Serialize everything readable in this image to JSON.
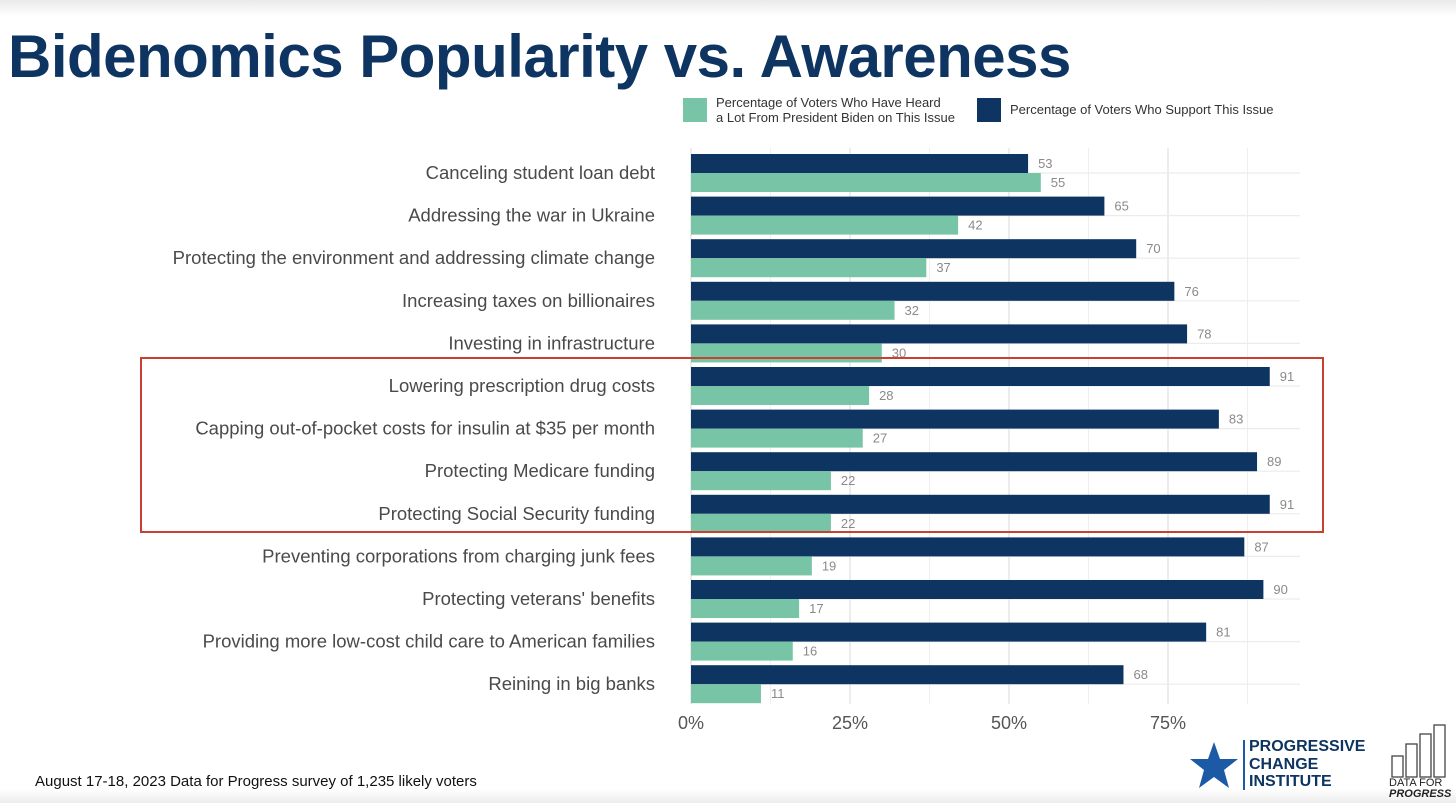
{
  "title": "Bidenomics Popularity vs. Awareness",
  "legend": [
    {
      "label": "Percentage of Voters Who Have Heard\na Lot From President Biden on This Issue",
      "color": "#78c4a6"
    },
    {
      "label": "Percentage of Voters Who Support This Issue",
      "color": "#0e3461"
    }
  ],
  "chart_data": {
    "type": "bar",
    "orientation": "horizontal",
    "title": "Bidenomics Popularity vs. Awareness",
    "categories": [
      "Canceling student loan debt",
      "Addressing the war in Ukraine",
      "Protecting the environment and addressing climate change",
      "Increasing taxes on billionaires",
      "Investing in infrastructure",
      "Lowering prescription drug costs",
      "Capping out-of-pocket costs for insulin at $35 per month",
      "Protecting Medicare funding",
      "Protecting Social Security funding",
      "Preventing corporations from charging junk fees",
      "Protecting veterans' benefits",
      "Providing more low-cost child care to American families",
      "Reining in big banks"
    ],
    "series": [
      {
        "name": "Percentage of Voters Who Support This Issue",
        "color": "#0e3461",
        "values": [
          53,
          65,
          70,
          76,
          78,
          91,
          83,
          89,
          91,
          87,
          90,
          81,
          68
        ]
      },
      {
        "name": "Percentage of Voters Who Have Heard a Lot From President Biden on This Issue",
        "color": "#78c4a6",
        "values": [
          55,
          42,
          37,
          32,
          30,
          28,
          27,
          22,
          22,
          19,
          17,
          16,
          11
        ]
      }
    ],
    "x_ticks": [
      "0%",
      "25%",
      "50%",
      "75%"
    ],
    "xlim": [
      0,
      96
    ],
    "grid": true,
    "legend_position": "top",
    "highlighted_categories": [
      "Lowering prescription drug costs",
      "Capping out-of-pocket costs for insulin at $35 per month",
      "Protecting Medicare funding",
      "Protecting Social Security funding"
    ]
  },
  "footnote": "August 17-18, 2023 Data for Progress survey of 1,235 likely voters",
  "logos": {
    "pci": "PROGRESSIVE\nCHANGE\nINSTITUTE",
    "dfp_line1": "DATA FOR",
    "dfp_line2": "PROGRESS"
  }
}
